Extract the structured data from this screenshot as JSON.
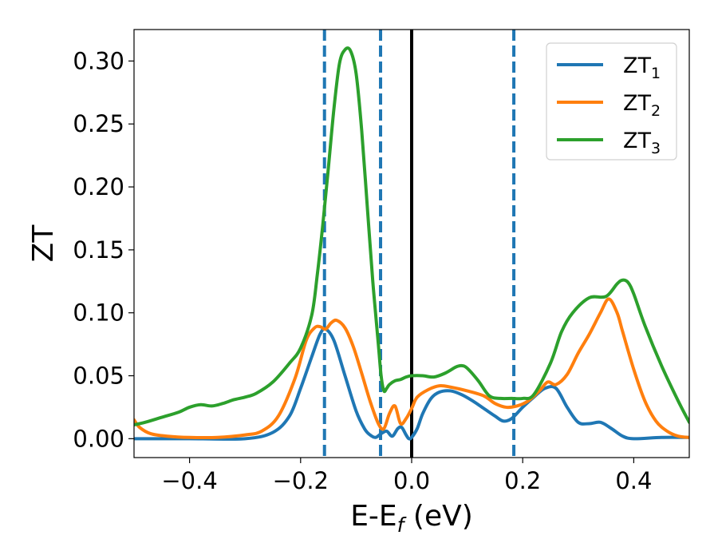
{
  "chart_data": {
    "type": "line",
    "xlabel": {
      "main": "E-E",
      "sub": "f",
      "tail": " (eV)"
    },
    "ylabel": "ZT",
    "xlim": [
      -0.5,
      0.5
    ],
    "ylim": [
      -0.015,
      0.325
    ],
    "xticks": [
      -0.4,
      -0.2,
      0.0,
      0.2,
      0.4
    ],
    "xtick_labels": [
      "−0.4",
      "−0.2",
      "0.0",
      "0.2",
      "0.4"
    ],
    "yticks": [
      0.0,
      0.05,
      0.1,
      0.15,
      0.2,
      0.25,
      0.3
    ],
    "ytick_labels": [
      "0.00",
      "0.05",
      "0.10",
      "0.15",
      "0.20",
      "0.25",
      "0.30"
    ],
    "grid": false,
    "legend_position": "top-right",
    "vertical_lines": [
      {
        "x": -0.157,
        "style": "dashed",
        "color": "#1f77b4"
      },
      {
        "x": -0.056,
        "style": "dashed",
        "color": "#1f77b4"
      },
      {
        "x": 0.0,
        "style": "solid",
        "color": "#000000"
      },
      {
        "x": 0.184,
        "style": "dashed",
        "color": "#1f77b4"
      }
    ],
    "series": [
      {
        "name": "ZT",
        "sub": "1",
        "color": "#1f77b4",
        "x": [
          -0.5,
          -0.4,
          -0.3,
          -0.25,
          -0.22,
          -0.2,
          -0.18,
          -0.165,
          -0.155,
          -0.14,
          -0.12,
          -0.1,
          -0.085,
          -0.075,
          -0.065,
          -0.055,
          -0.045,
          -0.035,
          -0.025,
          -0.018,
          -0.01,
          -0.005,
          0.0,
          0.01,
          0.02,
          0.035,
          0.05,
          0.07,
          0.09,
          0.11,
          0.13,
          0.15,
          0.165,
          0.18,
          0.2,
          0.22,
          0.24,
          0.26,
          0.28,
          0.3,
          0.32,
          0.34,
          0.36,
          0.38,
          0.4,
          0.45,
          0.5
        ],
        "y": [
          0.0,
          0.0,
          0.0,
          0.005,
          0.018,
          0.04,
          0.065,
          0.083,
          0.087,
          0.078,
          0.05,
          0.022,
          0.008,
          0.003,
          0.001,
          0.004,
          0.006,
          0.002,
          0.008,
          0.009,
          0.003,
          0.0,
          0.001,
          0.008,
          0.02,
          0.032,
          0.037,
          0.038,
          0.035,
          0.03,
          0.024,
          0.018,
          0.014,
          0.016,
          0.025,
          0.033,
          0.04,
          0.04,
          0.025,
          0.013,
          0.012,
          0.013,
          0.008,
          0.002,
          0.0,
          0.001,
          0.001
        ]
      },
      {
        "name": "ZT",
        "sub": "2",
        "color": "#ff7f0e",
        "x": [
          -0.5,
          -0.49,
          -0.47,
          -0.44,
          -0.4,
          -0.35,
          -0.3,
          -0.27,
          -0.24,
          -0.21,
          -0.19,
          -0.175,
          -0.165,
          -0.155,
          -0.145,
          -0.135,
          -0.12,
          -0.105,
          -0.09,
          -0.075,
          -0.06,
          -0.05,
          -0.04,
          -0.03,
          -0.02,
          -0.01,
          0.0,
          0.01,
          0.03,
          0.05,
          0.07,
          0.1,
          0.13,
          0.15,
          0.17,
          0.19,
          0.21,
          0.23,
          0.245,
          0.26,
          0.28,
          0.3,
          0.32,
          0.34,
          0.355,
          0.37,
          0.38,
          0.4,
          0.42,
          0.44,
          0.46,
          0.48,
          0.5
        ],
        "y": [
          0.015,
          0.009,
          0.004,
          0.002,
          0.001,
          0.001,
          0.003,
          0.006,
          0.018,
          0.048,
          0.078,
          0.088,
          0.089,
          0.087,
          0.092,
          0.094,
          0.088,
          0.073,
          0.052,
          0.03,
          0.012,
          0.008,
          0.02,
          0.026,
          0.012,
          0.016,
          0.024,
          0.033,
          0.039,
          0.042,
          0.041,
          0.038,
          0.034,
          0.028,
          0.025,
          0.026,
          0.03,
          0.038,
          0.045,
          0.043,
          0.051,
          0.068,
          0.083,
          0.1,
          0.111,
          0.1,
          0.085,
          0.055,
          0.03,
          0.014,
          0.006,
          0.002,
          0.001
        ]
      },
      {
        "name": "ZT",
        "sub": "3",
        "color": "#2ca02c",
        "x": [
          -0.5,
          -0.48,
          -0.45,
          -0.42,
          -0.4,
          -0.38,
          -0.36,
          -0.34,
          -0.32,
          -0.3,
          -0.28,
          -0.25,
          -0.22,
          -0.2,
          -0.18,
          -0.17,
          -0.16,
          -0.15,
          -0.14,
          -0.13,
          -0.12,
          -0.11,
          -0.1,
          -0.09,
          -0.08,
          -0.07,
          -0.06,
          -0.055,
          -0.05,
          -0.045,
          -0.04,
          -0.03,
          -0.02,
          -0.01,
          0.0,
          0.02,
          0.04,
          0.06,
          0.08,
          0.09,
          0.1,
          0.12,
          0.14,
          0.16,
          0.18,
          0.2,
          0.22,
          0.25,
          0.27,
          0.29,
          0.32,
          0.35,
          0.37,
          0.38,
          0.39,
          0.4,
          0.42,
          0.45,
          0.48,
          0.5
        ],
        "y": [
          0.011,
          0.013,
          0.017,
          0.021,
          0.025,
          0.027,
          0.026,
          0.028,
          0.031,
          0.033,
          0.036,
          0.045,
          0.06,
          0.072,
          0.098,
          0.13,
          0.17,
          0.215,
          0.262,
          0.298,
          0.309,
          0.308,
          0.29,
          0.245,
          0.185,
          0.125,
          0.075,
          0.05,
          0.038,
          0.04,
          0.043,
          0.046,
          0.047,
          0.049,
          0.05,
          0.05,
          0.049,
          0.052,
          0.057,
          0.058,
          0.056,
          0.046,
          0.034,
          0.032,
          0.032,
          0.032,
          0.035,
          0.06,
          0.085,
          0.1,
          0.112,
          0.113,
          0.123,
          0.126,
          0.124,
          0.115,
          0.09,
          0.058,
          0.03,
          0.013
        ]
      }
    ]
  }
}
